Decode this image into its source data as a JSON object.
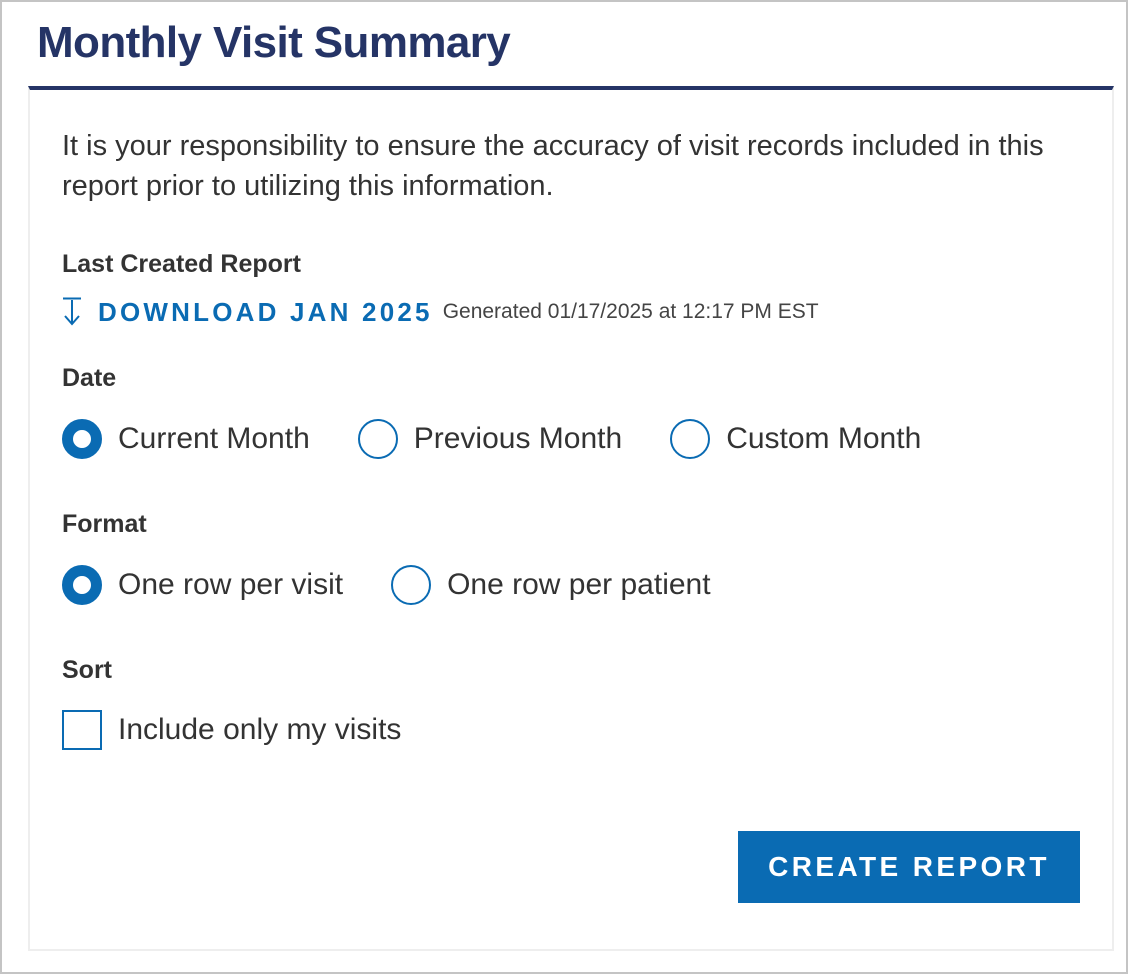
{
  "page": {
    "title": "Monthly Visit Summary"
  },
  "disclaimer": "It is your responsibility to ensure the accuracy of visit records included in this report prior to utilizing this information.",
  "last_report": {
    "label": "Last Created Report",
    "download_label": "DOWNLOAD JAN 2025",
    "download_icon": "arrow-down-icon",
    "generated_text": "Generated 01/17/2025 at 12:17 PM EST"
  },
  "date": {
    "label": "Date",
    "options": [
      {
        "label": "Current Month",
        "checked": true
      },
      {
        "label": "Previous Month",
        "checked": false
      },
      {
        "label": "Custom Month",
        "checked": false
      }
    ]
  },
  "format": {
    "label": "Format",
    "options": [
      {
        "label": "One row per visit",
        "checked": true
      },
      {
        "label": "One row per patient",
        "checked": false
      }
    ]
  },
  "sort": {
    "label": "Sort",
    "checkbox": {
      "label": "Include only my visits",
      "checked": false
    }
  },
  "actions": {
    "create_label": "CREATE REPORT"
  },
  "colors": {
    "title": "#253466",
    "accent": "#0a6bb3",
    "text": "#333333",
    "border": "#c4c4c4"
  }
}
